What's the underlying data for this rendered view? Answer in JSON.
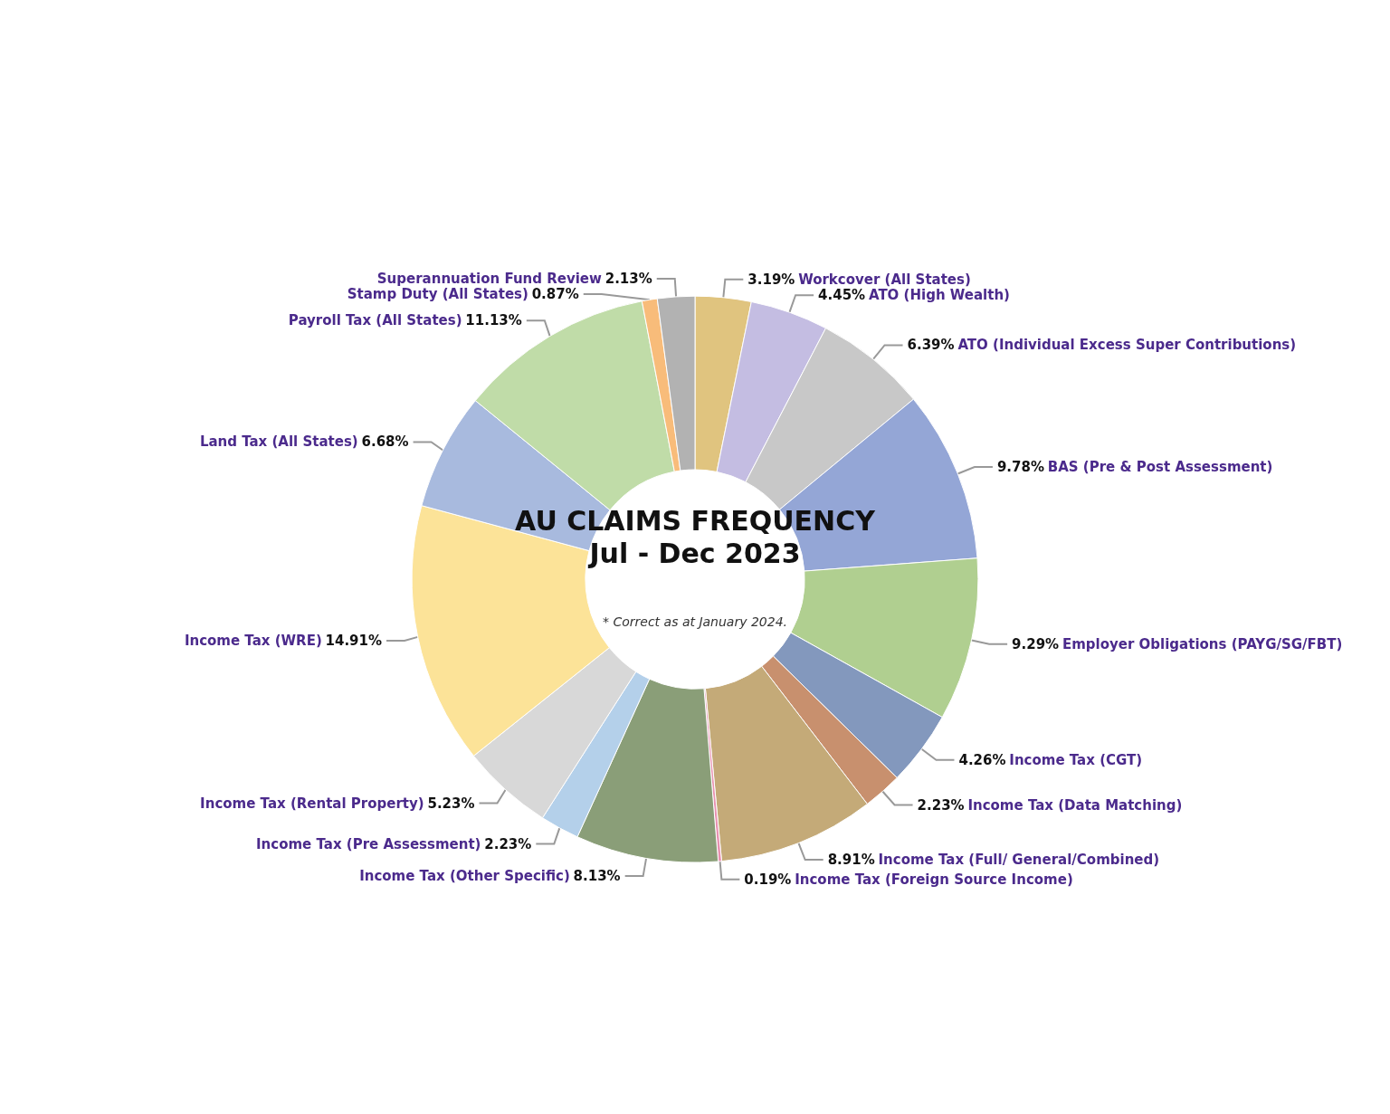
{
  "chart_data": {
    "type": "donut",
    "title": "AU CLAIMS FREQUENCY",
    "subtitle": "Jul - Dec 2023",
    "annotations": [
      "* Correct as at January 2024."
    ],
    "categories": [
      "Workcover (All States)",
      "ATO (High Wealth)",
      "ATO (Individual Excess Super Contributions)",
      "BAS (Pre & Post Assessment)",
      "Employer Obligations (PAYG/SG/FBT)",
      "Income Tax (CGT)",
      "Income Tax (Data Matching)",
      "Income Tax (Full/ General/Combined)",
      "Income Tax (Foreign Source Income)",
      "Income Tax (Other Specific)",
      "Income Tax (Pre Assessment)",
      "Income Tax (Rental Property)",
      "Income Tax (WRE)",
      "Land Tax (All States)",
      "Payroll Tax (All States)",
      "Stamp Duty (All States)",
      "Superannuation Fund Review"
    ],
    "values": [
      3.19,
      4.45,
      6.39,
      9.78,
      9.29,
      4.26,
      2.23,
      8.91,
      0.19,
      8.13,
      2.23,
      5.23,
      14.91,
      6.68,
      11.13,
      0.87,
      2.13
    ],
    "value_labels": [
      "3.19%",
      "4.45%",
      "6.39%",
      "9.78%",
      "9.29%",
      "4.26%",
      "2.23%",
      "8.91%",
      "0.19%",
      "8.13%",
      "2.23%",
      "5.23%",
      "14.91%",
      "6.68%",
      "11.13%",
      "0.87%",
      "2.13%"
    ],
    "colors": [
      "#e0c47f",
      "#c4bde2",
      "#c8c8c8",
      "#94a6d6",
      "#b0cf90",
      "#8398bd",
      "#c8906e",
      "#c4aa78",
      "#e891b0",
      "#8a9e78",
      "#b4d0ea",
      "#d8d8d8",
      "#fce398",
      "#a8bade",
      "#c0dca8",
      "#f8bc7a",
      "#b2b2b2"
    ],
    "legend": false
  }
}
